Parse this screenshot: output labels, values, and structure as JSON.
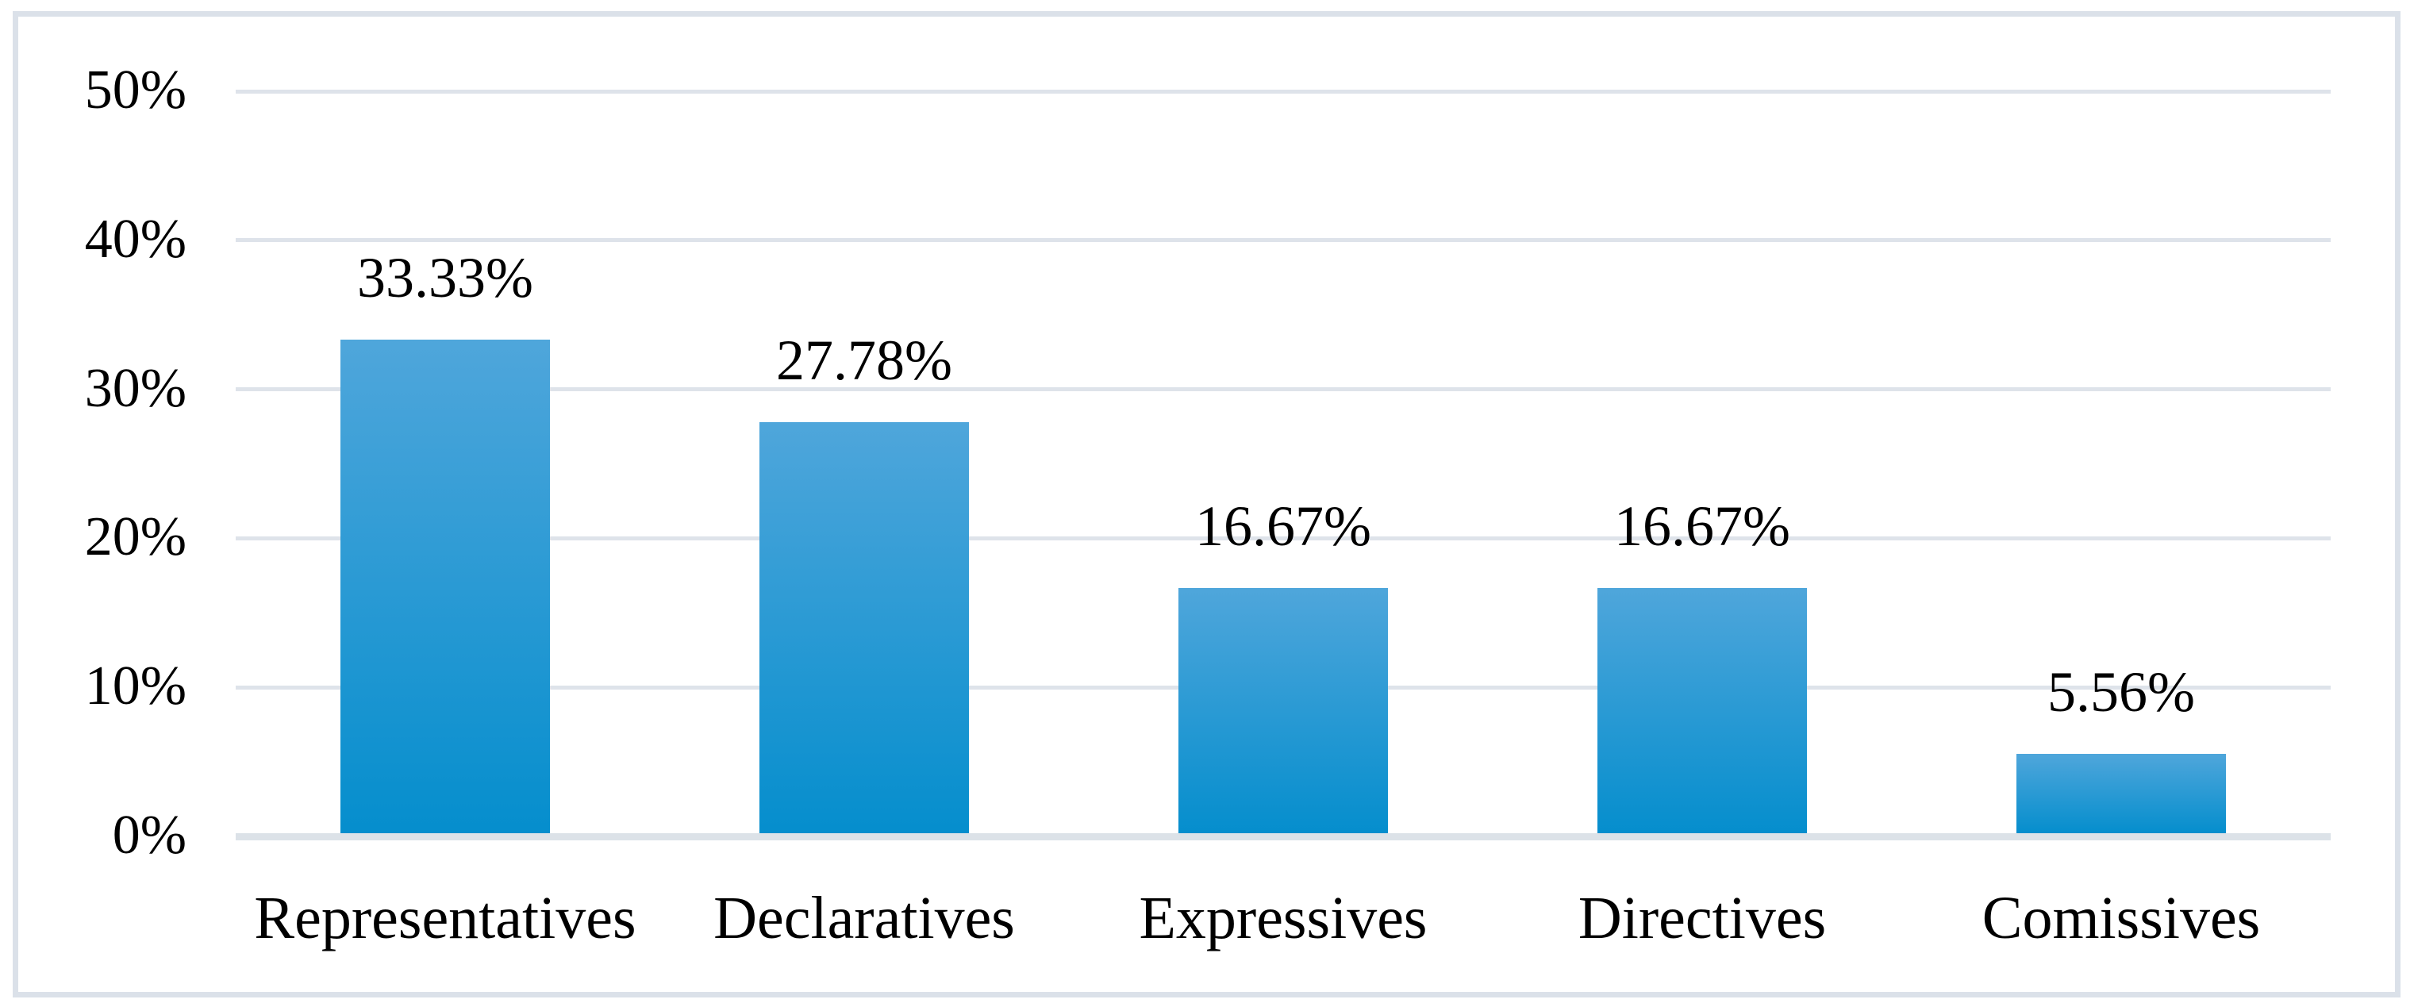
{
  "chart_data": {
    "type": "bar",
    "title": "",
    "xlabel": "",
    "ylabel": "",
    "categories": [
      "Representatives",
      "Declaratives",
      "Expressives",
      "Directives",
      "Comissives"
    ],
    "values": [
      33.33,
      27.78,
      16.67,
      16.67,
      5.56
    ],
    "data_labels": [
      "33.33%",
      "27.78%",
      "16.67%",
      "16.67%",
      "5.56%"
    ],
    "y_axis": {
      "range": [
        0,
        50
      ],
      "ticks": [
        {
          "value": 50,
          "label": "50%"
        },
        {
          "value": 40,
          "label": "40%"
        },
        {
          "value": 30,
          "label": "30%"
        },
        {
          "value": 20,
          "label": "20%"
        },
        {
          "value": 10,
          "label": "10%"
        },
        {
          "value": 0,
          "label": "0%"
        }
      ]
    },
    "grid": "horizontal",
    "legend": "none",
    "colors": {
      "bar_gradient_top": "#4FA6DB",
      "bar_gradient_bottom": "#058ECD",
      "gridline": "#DEE3EA",
      "axis_line": "#DCE2E8",
      "frame_border": "#DBE1E9",
      "text": "#000000",
      "background": "#FFFFFF"
    }
  }
}
